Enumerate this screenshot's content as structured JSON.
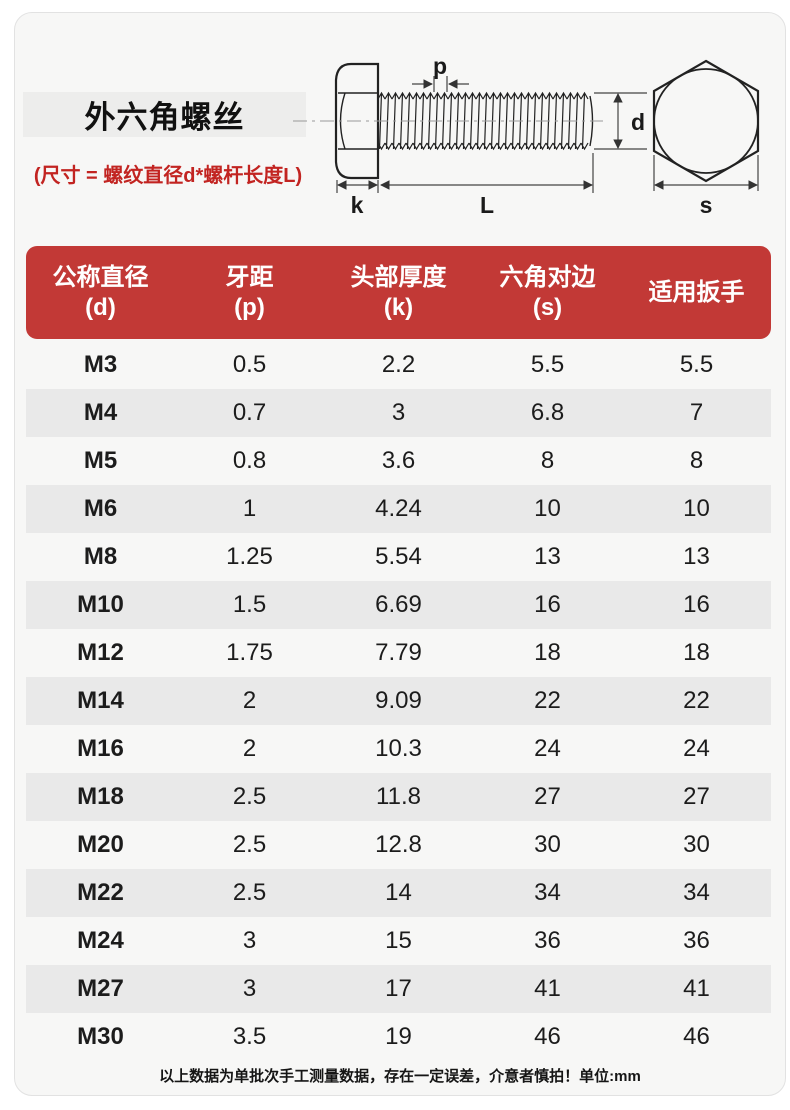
{
  "header": {
    "title": "外六角螺丝",
    "size_note": "(尺寸 = 螺纹直径d*螺杆长度L)"
  },
  "diagram": {
    "labels": {
      "p": "p",
      "d": "d",
      "k": "k",
      "L": "L",
      "s": "s"
    }
  },
  "table": {
    "columns": [
      {
        "name": "公称直径",
        "symbol": "(d)"
      },
      {
        "name": "牙距",
        "symbol": "(p)"
      },
      {
        "name": "头部厚度",
        "symbol": "(k)"
      },
      {
        "name": "六角对边",
        "symbol": "(s)"
      },
      {
        "name": "适用扳手",
        "symbol": ""
      }
    ],
    "rows": [
      [
        "M3",
        "0.5",
        "2.2",
        "5.5",
        "5.5"
      ],
      [
        "M4",
        "0.7",
        "3",
        "6.8",
        "7"
      ],
      [
        "M5",
        "0.8",
        "3.6",
        "8",
        "8"
      ],
      [
        "M6",
        "1",
        "4.24",
        "10",
        "10"
      ],
      [
        "M8",
        "1.25",
        "5.54",
        "13",
        "13"
      ],
      [
        "M10",
        "1.5",
        "6.69",
        "16",
        "16"
      ],
      [
        "M12",
        "1.75",
        "7.79",
        "18",
        "18"
      ],
      [
        "M14",
        "2",
        "9.09",
        "22",
        "22"
      ],
      [
        "M16",
        "2",
        "10.3",
        "24",
        "24"
      ],
      [
        "M18",
        "2.5",
        "11.8",
        "27",
        "27"
      ],
      [
        "M20",
        "2.5",
        "12.8",
        "30",
        "30"
      ],
      [
        "M22",
        "2.5",
        "14",
        "34",
        "34"
      ],
      [
        "M24",
        "3",
        "15",
        "36",
        "36"
      ],
      [
        "M27",
        "3",
        "17",
        "41",
        "41"
      ],
      [
        "M30",
        "3.5",
        "19",
        "46",
        "46"
      ]
    ]
  },
  "footer": {
    "note": "以上数据为单批次手工测量数据，存在一定误差，介意者慎拍！单位:mm"
  },
  "colors": {
    "header_red": "#c23936",
    "note_red": "#c22421",
    "row_alt": "#e9e9e9",
    "card_bg": "#f7f7f6",
    "title_box_bg": "#ededec"
  }
}
